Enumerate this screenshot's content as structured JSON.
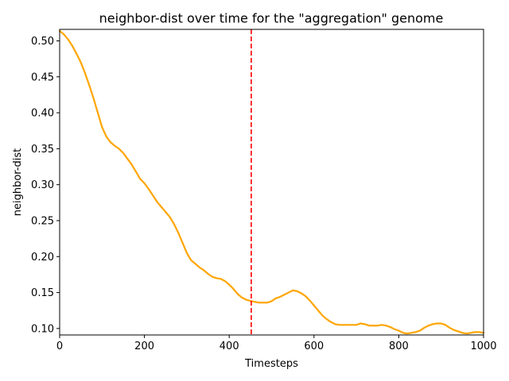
{
  "chart_data": {
    "type": "line",
    "title": "neighbor-dist over time for the \"aggregation\" genome",
    "xlabel": "Timesteps",
    "ylabel": "neighbor-dist",
    "xlim": [
      0,
      1000
    ],
    "ylim": [
      0.091,
      0.516
    ],
    "x_ticks": [
      0,
      200,
      400,
      600,
      800,
      1000
    ],
    "y_ticks": [
      0.1,
      0.15,
      0.2,
      0.25,
      0.3,
      0.35,
      0.4,
      0.45,
      0.5
    ],
    "x_tick_labels": [
      "0",
      "200",
      "400",
      "600",
      "800",
      "1000"
    ],
    "y_tick_labels": [
      "0.10",
      "0.15",
      "0.20",
      "0.25",
      "0.30",
      "0.35",
      "0.40",
      "0.45",
      "0.50"
    ],
    "grid": false,
    "vline": {
      "x": 452,
      "color": "#ff0000",
      "style": "dashed"
    },
    "series": [
      {
        "color": "#ffa500",
        "x": [
          0,
          10,
          20,
          30,
          40,
          50,
          60,
          70,
          80,
          90,
          100,
          110,
          120,
          130,
          140,
          150,
          160,
          170,
          180,
          190,
          200,
          210,
          220,
          230,
          240,
          250,
          260,
          270,
          280,
          290,
          300,
          310,
          320,
          330,
          340,
          350,
          360,
          370,
          380,
          390,
          400,
          410,
          420,
          430,
          440,
          452,
          470,
          490,
          500,
          510,
          520,
          530,
          540,
          550,
          560,
          570,
          580,
          590,
          600,
          610,
          620,
          630,
          640,
          650,
          660,
          670,
          680,
          690,
          700,
          710,
          720,
          730,
          740,
          750,
          760,
          770,
          780,
          790,
          800,
          810,
          820,
          830,
          840,
          850,
          860,
          870,
          880,
          890,
          900,
          910,
          920,
          930,
          940,
          950,
          960,
          970,
          980,
          990,
          1000
        ],
        "y": [
          0.514,
          0.509,
          0.502,
          0.493,
          0.482,
          0.47,
          0.455,
          0.438,
          0.42,
          0.4,
          0.38,
          0.367,
          0.359,
          0.354,
          0.35,
          0.344,
          0.336,
          0.328,
          0.318,
          0.308,
          0.302,
          0.294,
          0.285,
          0.276,
          0.269,
          0.262,
          0.255,
          0.245,
          0.233,
          0.219,
          0.205,
          0.195,
          0.19,
          0.185,
          0.181,
          0.176,
          0.172,
          0.17,
          0.169,
          0.166,
          0.161,
          0.155,
          0.148,
          0.143,
          0.14,
          0.138,
          0.136,
          0.136,
          0.138,
          0.142,
          0.144,
          0.147,
          0.15,
          0.153,
          0.152,
          0.149,
          0.145,
          0.139,
          0.132,
          0.125,
          0.118,
          0.113,
          0.109,
          0.106,
          0.105,
          0.105,
          0.105,
          0.105,
          0.105,
          0.107,
          0.106,
          0.104,
          0.104,
          0.104,
          0.105,
          0.104,
          0.102,
          0.099,
          0.097,
          0.094,
          0.093,
          0.094,
          0.095,
          0.097,
          0.101,
          0.104,
          0.106,
          0.107,
          0.107,
          0.105,
          0.101,
          0.098,
          0.096,
          0.094,
          0.093,
          0.094,
          0.095,
          0.095,
          0.094
        ]
      }
    ]
  }
}
